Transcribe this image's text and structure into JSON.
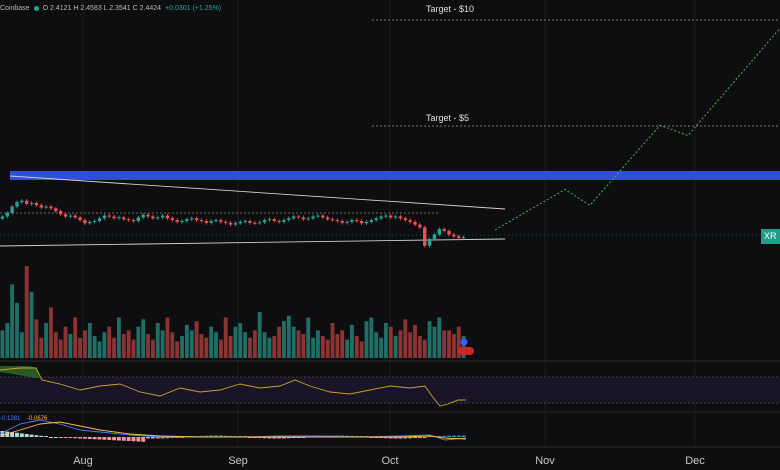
{
  "header": {
    "exchange": "Coinbase",
    "ohlc": "O 2.4121  H 2.4583  L 2.3541  C 2.4424",
    "change": "+0.0301 (+1.25%)"
  },
  "price_tag": "XR",
  "macd_readout": {
    "v1": "-0.1281",
    "v2": "-0.0676"
  },
  "colors": {
    "up": "#26a69a",
    "down": "#ef5350",
    "resistance": "#2f4fd9",
    "projection": "#4caf50",
    "rsi": "#c9a227"
  },
  "chart_data": {
    "type": "candlestick",
    "title": "",
    "x_ticks": [
      "Aug",
      "Sep",
      "Oct",
      "Nov",
      "Dec"
    ],
    "annotations": [
      {
        "label": "Target - $10",
        "value": 10
      },
      {
        "label": "Target - $5",
        "value": 5
      }
    ],
    "resistance_band": [
      2.85,
      3.0
    ],
    "channel_upper": [
      3.0,
      2.45
    ],
    "channel_lower": [
      2.1,
      2.25
    ],
    "candles_close": [
      2.7,
      2.78,
      2.92,
      3.02,
      3.05,
      2.98,
      3.0,
      2.95,
      2.9,
      2.92,
      2.88,
      2.82,
      2.75,
      2.7,
      2.72,
      2.68,
      2.62,
      2.55,
      2.58,
      2.6,
      2.66,
      2.72,
      2.7,
      2.66,
      2.68,
      2.64,
      2.62,
      2.6,
      2.68,
      2.74,
      2.7,
      2.66,
      2.68,
      2.72,
      2.66,
      2.62,
      2.58,
      2.6,
      2.64,
      2.66,
      2.62,
      2.6,
      2.56,
      2.6,
      2.62,
      2.58,
      2.56,
      2.52,
      2.55,
      2.58,
      2.6,
      2.56,
      2.55,
      2.57,
      2.62,
      2.64,
      2.6,
      2.58,
      2.62,
      2.66,
      2.7,
      2.68,
      2.64,
      2.66,
      2.7,
      2.72,
      2.68,
      2.64,
      2.62,
      2.6,
      2.56,
      2.58,
      2.62,
      2.6,
      2.55,
      2.58,
      2.62,
      2.66,
      2.7,
      2.72,
      2.68,
      2.7,
      2.66,
      2.62,
      2.58,
      2.52,
      2.46,
      2.05,
      2.2,
      2.3,
      2.42,
      2.38,
      2.3,
      2.26,
      2.22,
      2.24
    ],
    "volume": [
      30,
      38,
      80,
      60,
      28,
      100,
      72,
      42,
      22,
      38,
      55,
      28,
      20,
      34,
      26,
      44,
      22,
      30,
      38,
      24,
      18,
      28,
      34,
      22,
      44,
      26,
      30,
      20,
      34,
      42,
      26,
      20,
      38,
      30,
      44,
      28,
      18,
      24,
      36,
      30,
      40,
      26,
      22,
      34,
      28,
      20,
      44,
      24,
      34,
      38,
      28,
      22,
      30,
      50,
      28,
      22,
      24,
      34,
      40,
      46,
      34,
      30,
      26,
      44,
      22,
      30,
      24,
      20,
      38,
      26,
      30,
      20,
      36,
      24,
      18,
      40,
      44,
      28,
      22,
      38,
      34,
      24,
      30,
      42,
      28,
      36,
      24,
      20,
      40,
      34,
      44,
      30,
      30,
      26,
      34,
      24
    ],
    "projection_path": [
      [
        495,
        2.4
      ],
      [
        565,
        3.3
      ],
      [
        590,
        2.95
      ],
      [
        660,
        4.85
      ],
      [
        688,
        4.35
      ],
      [
        780,
        9.6
      ]
    ],
    "rsi_levels": [
      70,
      30
    ],
    "legend": "none",
    "grid": false
  }
}
